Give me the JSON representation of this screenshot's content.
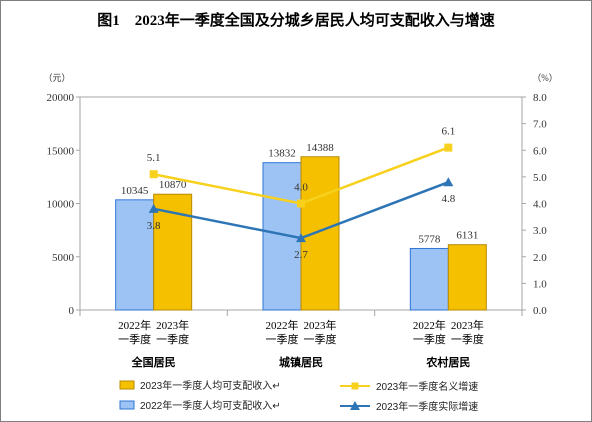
{
  "title": "图1　2023年一季度全国及分城乡居民人均可支配收入与增速",
  "chart_data": {
    "type": "bar",
    "categories": [
      "全国居民",
      "城镇居民",
      "农村居民"
    ],
    "sub_labels": [
      "2022年",
      "2023年",
      "一季度",
      "一季度"
    ],
    "y_left": {
      "unit_label": "（元）",
      "ylim": [
        0,
        20000
      ],
      "ticks": [
        "0",
        "5000",
        "10000",
        "15000",
        "20000"
      ]
    },
    "y_right": {
      "unit_label": "（%）",
      "ylim": [
        0.0,
        8.0
      ],
      "ticks": [
        "0.0",
        "1.0",
        "2.0",
        "3.0",
        "4.0",
        "5.0",
        "6.0",
        "7.0",
        "8.0"
      ]
    },
    "bar_series": [
      {
        "name": "2022年一季度人均可支配收入↵",
        "values": [
          10345,
          13832,
          5778
        ],
        "labels": [
          "10345",
          "13832",
          "5778"
        ],
        "color": "#9dc3f5",
        "stroke": "#2e75d6"
      },
      {
        "name": "2023年一季度人均可支配收入↵",
        "values": [
          10870,
          14388,
          6131
        ],
        "labels": [
          "10870",
          "14388",
          "6131"
        ],
        "color": "#f5c000",
        "stroke": "#b88a00"
      }
    ],
    "line_series": [
      {
        "name": "2023年一季度名义增速",
        "values": [
          5.1,
          4.0,
          6.1
        ],
        "labels": [
          "5.1",
          "4.0",
          "6.1"
        ],
        "color": "#f7d11e",
        "marker": "square"
      },
      {
        "name": "2023年一季度实际增速",
        "values": [
          3.8,
          2.7,
          4.8
        ],
        "labels": [
          "3.8",
          "2.7",
          "4.8"
        ],
        "color": "#2e75b6",
        "marker": "triangle"
      }
    ],
    "grid": false,
    "legend_position": "bottom"
  }
}
